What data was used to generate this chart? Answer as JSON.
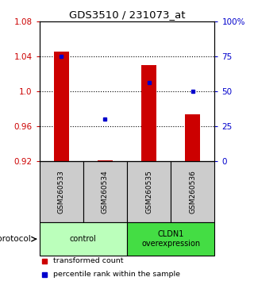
{
  "title": "GDS3510 / 231073_at",
  "samples": [
    "GSM260533",
    "GSM260534",
    "GSM260535",
    "GSM260536"
  ],
  "transformed_counts": [
    1.045,
    0.921,
    1.03,
    0.974
  ],
  "percentile_ranks": [
    75,
    30,
    56,
    50
  ],
  "ylim_left": [
    0.92,
    1.08
  ],
  "ylim_right": [
    0,
    100
  ],
  "yticks_left": [
    0.92,
    0.96,
    1.0,
    1.04,
    1.08
  ],
  "yticks_right": [
    0,
    25,
    50,
    75,
    100
  ],
  "ytick_labels_right": [
    "0",
    "25",
    "50",
    "75",
    "100%"
  ],
  "bar_color": "#cc0000",
  "dot_color": "#0000cc",
  "bg_color": "#ffffff",
  "sample_box_color": "#cccccc",
  "protocol_groups": [
    {
      "label": "control",
      "samples": [
        0,
        1
      ],
      "color": "#bbffbb"
    },
    {
      "label": "CLDN1\noverexpression",
      "samples": [
        2,
        3
      ],
      "color": "#44dd44"
    }
  ],
  "legend_items": [
    {
      "label": "transformed count",
      "color": "#cc0000"
    },
    {
      "label": "percentile rank within the sample",
      "color": "#0000cc"
    }
  ],
  "bar_width": 0.35
}
